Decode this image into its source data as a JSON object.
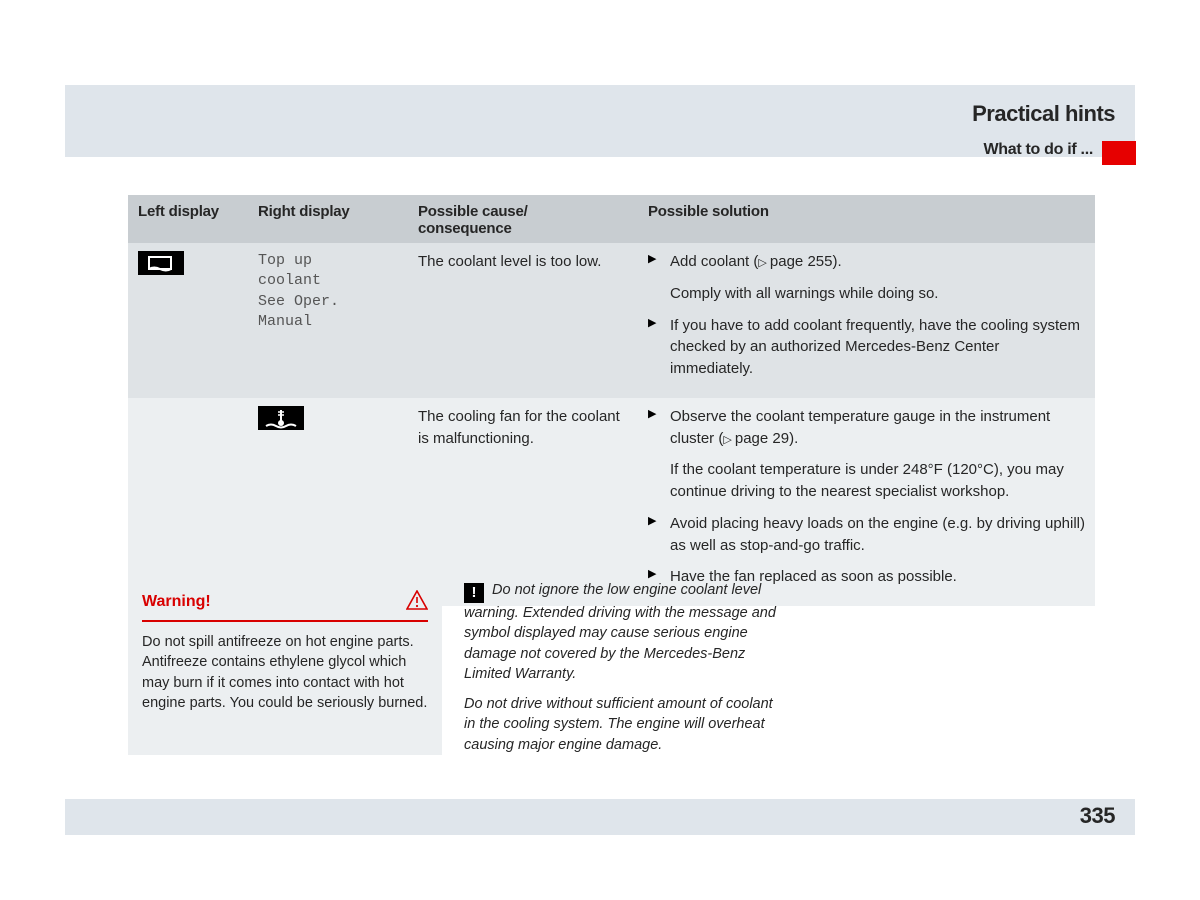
{
  "header": {
    "title": "Practical hints",
    "subtitle": "What to do if ..."
  },
  "table": {
    "columns": [
      "Left display",
      "Right display",
      "Possible cause/\nconsequence",
      "Possible solution"
    ],
    "rows": [
      {
        "left_icon": "coolant-level-icon",
        "right_display": "Top up\ncoolant\nSee Oper. Manual",
        "cause": "The coolant level is too low.",
        "solutions": [
          {
            "type": "bullet",
            "text": "Add coolant (",
            "pageref": "page 255",
            "tail": ")."
          },
          {
            "type": "cont",
            "text": "Comply with all warnings while doing so."
          },
          {
            "type": "bullet",
            "text": "If you have to add coolant frequently, have the cooling system checked by an authorized Mercedes-Benz Center immediately."
          }
        ]
      },
      {
        "right_icon": "coolant-temp-icon",
        "cause": "The cooling fan for the coolant is malfunctioning.",
        "solutions": [
          {
            "type": "bullet",
            "text": "Observe the coolant temperature gauge in the instrument cluster (",
            "pageref": "page 29",
            "tail": ")."
          },
          {
            "type": "cont",
            "text": "If the coolant temperature is under 248°F (120°C), you may continue driving to the nearest specialist workshop."
          },
          {
            "type": "bullet",
            "text": "Avoid placing heavy loads on the engine (e.g. by driving uphill) as well as stop-and-go traffic."
          },
          {
            "type": "bullet",
            "text": "Have the fan replaced as soon as possible."
          }
        ]
      }
    ]
  },
  "warning": {
    "title": "Warning!",
    "body": "Do not spill antifreeze on hot engine parts. Antifreeze contains ethylene glycol which may burn if it comes into contact with hot engine parts. You could be seriously burned."
  },
  "notice": {
    "para1": "Do not ignore the low engine coolant level warning. Extended driving with the message and symbol displayed may cause serious engine damage not covered by the Mercedes-Benz Limited Warranty.",
    "para2": "Do not drive without sufficient amount of coolant in the cooling system. The engine will overheat causing major engine damage."
  },
  "page_number": "335",
  "colors": {
    "band": "#dfe5eb",
    "accent": "#e60000",
    "th_bg": "#c8cdd1",
    "rowA": "#dfe3e6",
    "rowB": "#eceff1",
    "warn_red": "#d80000"
  }
}
